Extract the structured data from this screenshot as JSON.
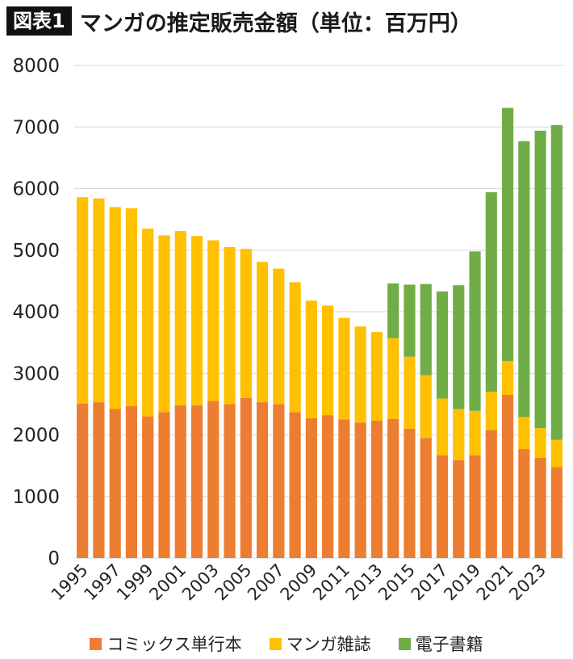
{
  "badge": "図表1",
  "title": "マンガの推定販売金額（単位：百万円）",
  "colors": {
    "comics": "#ED7D31",
    "magazines": "#FFC000",
    "ebooks": "#70AD47",
    "grid": "#d9d9d9"
  },
  "chart_data": {
    "type": "bar",
    "stacked": true,
    "title": "マンガの推定販売金額（単位：百万円）",
    "ylim": [
      0,
      8000
    ],
    "yticks": [
      0,
      1000,
      2000,
      3000,
      4000,
      5000,
      6000,
      7000,
      8000
    ],
    "grid": true,
    "legend_position": "bottom",
    "x": [
      1995,
      1996,
      1997,
      1998,
      1999,
      2000,
      2001,
      2002,
      2003,
      2004,
      2005,
      2006,
      2007,
      2008,
      2009,
      2010,
      2011,
      2012,
      2013,
      2014,
      2015,
      2016,
      2017,
      2018,
      2019,
      2020,
      2021,
      2022,
      2023,
      2024
    ],
    "x_tick_labels": [
      "1995",
      "1997",
      "1999",
      "2001",
      "2003",
      "2005",
      "2007",
      "2009",
      "2011",
      "2013",
      "2015",
      "2017",
      "2019",
      "2021",
      "2023"
    ],
    "series": [
      {
        "name": "コミックス単行本",
        "color_key": "comics",
        "values": [
          2510,
          2530,
          2420,
          2470,
          2300,
          2370,
          2480,
          2480,
          2550,
          2500,
          2600,
          2530,
          2500,
          2370,
          2270,
          2320,
          2250,
          2200,
          2230,
          2260,
          2100,
          1950,
          1670,
          1590,
          1670,
          2080,
          2650,
          1770,
          1630,
          1480
        ]
      },
      {
        "name": "マンガ雑誌",
        "color_key": "magazines",
        "values": [
          3350,
          3310,
          3280,
          3210,
          3050,
          2870,
          2830,
          2750,
          2610,
          2550,
          2420,
          2280,
          2200,
          2110,
          1910,
          1780,
          1650,
          1560,
          1440,
          1310,
          1170,
          1020,
          920,
          830,
          720,
          620,
          550,
          520,
          480,
          440
        ]
      },
      {
        "name": "電子書籍",
        "color_key": "ebooks",
        "values": [
          0,
          0,
          0,
          0,
          0,
          0,
          0,
          0,
          0,
          0,
          0,
          0,
          0,
          0,
          0,
          0,
          0,
          0,
          0,
          890,
          1170,
          1480,
          1740,
          2010,
          2590,
          3240,
          4110,
          4480,
          4830,
          5110
        ]
      }
    ]
  }
}
